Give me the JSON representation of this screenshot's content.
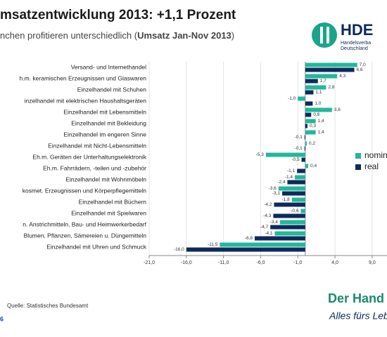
{
  "chart_data": {
    "type": "hbar",
    "title": "msatzentwicklung 2013: +1,1 Prozent",
    "subtitle": [
      "nchen profitieren unterschiedlich (",
      "Umsatz Jan-Nov 2013",
      ")"
    ],
    "categories": [
      "Versand- und Internethandel",
      "h.m. keramischen Erzeugnissen und Glaswaren",
      "Einzelhandel mit Schuhen",
      "inzelhandel mit elektrischen Haushaltsgeräten",
      "Einzelhandel mit Lebensmitteln",
      "Einzelhandel mit Bekleidung",
      "Einzelhandel im engeren Sinne",
      "Einzelhandel mit Nicht-Lebensmitteln",
      "Eh.m. Geräten der Unterhaltungselektronik",
      "Eh.m. Fahrrädern, -teilen und -zubehör",
      "Einzelhandel mit Wohnmöbeln",
      "kosmet. Erzeugnissen und Körperpflegemitteln",
      "Einzelhandel mit Büchern",
      "Einzelhandel mit Spielwaren",
      "n. Anstrichmitteln, Bau- und Heimwerkerbedarf",
      "Blumen, Pflanzen, Sämereien u. Düngemitteln",
      "Einzelhandel mit Uhren und Schmuck"
    ],
    "series": [
      {
        "name": "nomin",
        "color": "#22b89a",
        "values": [
          7.0,
          4.3,
          2.8,
          -1.0,
          3.6,
          1.4,
          1.4,
          0.2,
          -5.3,
          0.4,
          -1.4,
          -3.6,
          -1.8,
          -0.6,
          -3.4,
          -4.1,
          -11.5
        ],
        "value_labels": [
          "7,0",
          "4,3",
          "2,8",
          "-1,0",
          "3,6",
          "1,4",
          "1,4",
          "0,2",
          "-5,3",
          "0,4",
          "-1,4",
          "-3,6",
          "-1,8",
          "-0,6",
          "-3,4",
          "-4,1",
          "-11,5"
        ]
      },
      {
        "name": "real",
        "color": "#0c2a5b",
        "values": [
          6.6,
          1.7,
          1.1,
          1.0,
          0.8,
          0.3,
          -0.1,
          -0.1,
          -0.5,
          -1.1,
          -2.4,
          -3.1,
          -4.2,
          -4.3,
          -4.7,
          -6.8,
          -16.0
        ],
        "value_labels": [
          "6,6",
          "1,7",
          "1,1",
          "1,0",
          "0,8",
          "0,3",
          "-0,1",
          "-0,1",
          "-0,5",
          "-1,1",
          "-2,4",
          "-3,1",
          "-4,2",
          "-4,3",
          "-4,7",
          "-6,8",
          "-16,0"
        ]
      }
    ],
    "xlim": [
      -21,
      11
    ],
    "xticks": [
      {
        "value": -21,
        "label": "-21,0"
      },
      {
        "value": -16,
        "label": "-16,0"
      },
      {
        "value": -11,
        "label": "-11,0"
      },
      {
        "value": -6,
        "label": "-6,0"
      },
      {
        "value": -1,
        "label": "-1,0"
      },
      {
        "value": 4,
        "label": "4,0"
      },
      {
        "value": 9,
        "label": "9,0"
      }
    ],
    "grid": true
  },
  "logo": {
    "mark": "HDE",
    "line1": "Handelsverba",
    "line2": "Deutschland"
  },
  "footer": {
    "source": "Quelle: Statistisches Bundesamt",
    "page": "6",
    "brand": "Der Hand",
    "slogan": "Alles fürs Leb"
  }
}
